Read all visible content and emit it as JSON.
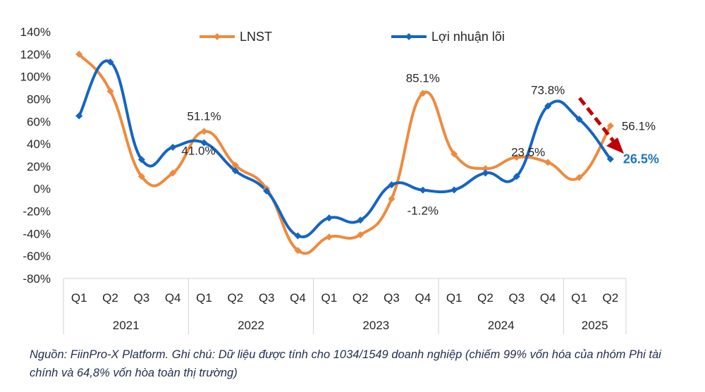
{
  "chart_data": {
    "type": "line",
    "title": "",
    "xlabel": "",
    "ylabel": "",
    "ylim": [
      -80,
      140
    ],
    "yticks": [
      140,
      120,
      100,
      80,
      60,
      40,
      20,
      0,
      -20,
      -40,
      -60,
      -80
    ],
    "ytick_labels": [
      "140%",
      "120%",
      "100%",
      "80%",
      "60%",
      "40%",
      "20%",
      "0%",
      "-20%",
      "-40%",
      "-60%",
      "-80%"
    ],
    "categories": [
      "Q1",
      "Q2",
      "Q3",
      "Q4",
      "Q1",
      "Q2",
      "Q3",
      "Q4",
      "Q1",
      "Q2",
      "Q3",
      "Q4",
      "Q1",
      "Q2",
      "Q3",
      "Q4",
      "Q1",
      "Q2"
    ],
    "years": [
      {
        "label": "2021",
        "count": 4
      },
      {
        "label": "2022",
        "count": 4
      },
      {
        "label": "2023",
        "count": 4
      },
      {
        "label": "2024",
        "count": 4
      },
      {
        "label": "2025",
        "count": 2
      }
    ],
    "series": [
      {
        "name": "LNST",
        "color": "#ED8B3F",
        "values": [
          120,
          87,
          11,
          14,
          51.1,
          21,
          0,
          -55,
          -43,
          -41,
          -9,
          85.1,
          31,
          18,
          28,
          23.5,
          10,
          56.1
        ]
      },
      {
        "name": "Lợi nhuận lõi",
        "color": "#1565C0",
        "values": [
          65,
          113,
          26,
          37,
          41.0,
          16,
          -2,
          -42,
          -26,
          -28,
          3.5,
          -1.2,
          -1,
          14,
          11,
          73.8,
          62,
          26.5
        ]
      }
    ],
    "annotations": [
      {
        "text": "51.1%",
        "series": 0,
        "index": 4
      },
      {
        "text": "41.0%",
        "series": 1,
        "index": 4
      },
      {
        "text": "85.1%",
        "series": 0,
        "index": 11
      },
      {
        "text": "-1.2%",
        "series": 1,
        "index": 11
      },
      {
        "text": "73.8%",
        "series": 1,
        "index": 15
      },
      {
        "text": "23.5%",
        "series": 0,
        "index": 15
      },
      {
        "text": "56.1%",
        "series": 0,
        "index": 17
      },
      {
        "text": "26.5%",
        "series": 1,
        "index": 17,
        "bold": true,
        "color": "#1B75BB"
      }
    ],
    "arrow_color": "#C00000",
    "legend_position": "top"
  },
  "note": "Nguồn: FiinPro-X Platform. Ghi chú: Dữ liệu được tính cho 1034/1549 doanh nghiệp (chiếm 99% vốn hóa của nhóm Phi tài chính và 64,8% vốn hòa toàn thị trường)"
}
